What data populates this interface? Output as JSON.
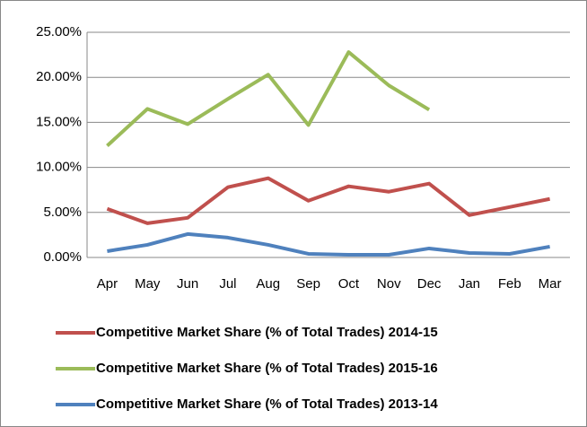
{
  "chart_data": {
    "type": "line",
    "categories": [
      "Apr",
      "May",
      "Jun",
      "Jul",
      "Aug",
      "Sep",
      "Oct",
      "Nov",
      "Dec",
      "Jan",
      "Feb",
      "Mar"
    ],
    "series": [
      {
        "name": "Competitive Market Share (% of Total Trades) 2014-15",
        "color": "#c0504d",
        "values": [
          5.4,
          3.8,
          4.4,
          7.8,
          8.8,
          6.3,
          7.9,
          7.3,
          8.2,
          4.7,
          5.6,
          6.5
        ]
      },
      {
        "name": "Competitive Market Share (% of Total Trades) 2015-16",
        "color": "#9bbb59",
        "values": [
          12.4,
          16.5,
          14.8,
          17.6,
          20.3,
          14.7,
          22.8,
          19.1,
          16.4,
          null,
          null,
          null
        ]
      },
      {
        "name": "Competitive Market Share (% of Total Trades) 2013-14",
        "color": "#4f81bd",
        "values": [
          0.7,
          1.4,
          2.6,
          2.2,
          1.4,
          0.4,
          0.3,
          0.3,
          1.0,
          0.5,
          0.4,
          1.2
        ]
      }
    ],
    "ylim": [
      0,
      25
    ],
    "yticks": [
      {
        "value": 0,
        "label": "0.00%"
      },
      {
        "value": 5,
        "label": "5.00%"
      },
      {
        "value": 10,
        "label": "10.00%"
      },
      {
        "value": 15,
        "label": "15.00%"
      },
      {
        "value": 20,
        "label": "20.00%"
      },
      {
        "value": 25,
        "label": "25.00%"
      }
    ],
    "grid": true,
    "legend": "bottom"
  }
}
